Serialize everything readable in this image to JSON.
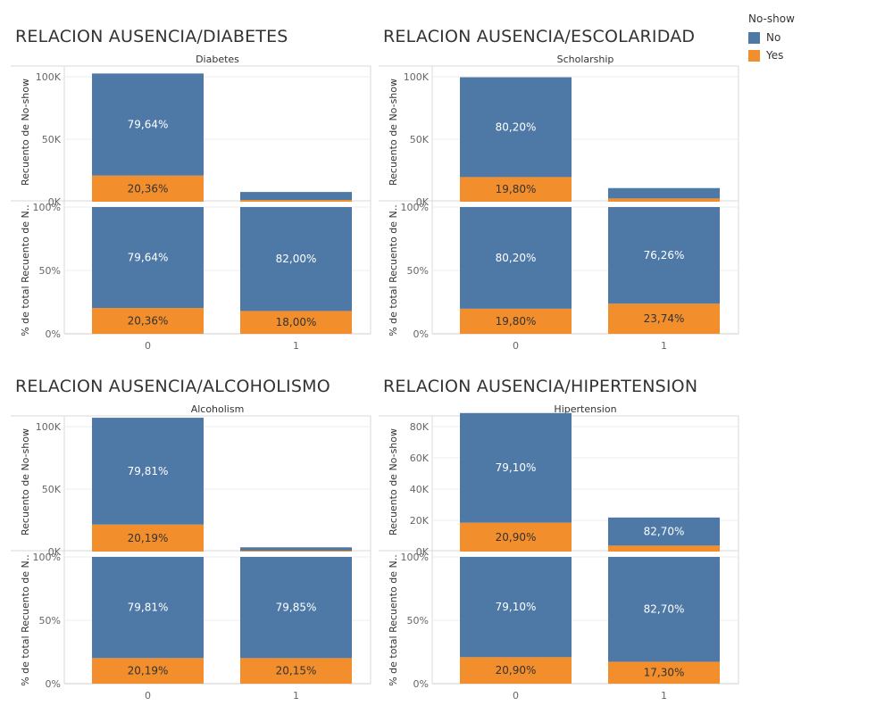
{
  "legend": {
    "title": "No-show",
    "items": [
      {
        "label": "No",
        "color": "#4e79a7"
      },
      {
        "label": "Yes",
        "color": "#f28e2b"
      }
    ]
  },
  "chart_data": [
    {
      "type": "bar",
      "title": "RELACION AUSENCIA/DIABETES",
      "facet_label": "Diabetes",
      "categories": [
        "0",
        "1"
      ],
      "count_panel": {
        "ylabel": "Recuento de No-show",
        "ylim": [
          0,
          110000
        ],
        "ticks": [
          {
            "v": 0,
            "label": "0K"
          },
          {
            "v": 50000,
            "label": "50K"
          },
          {
            "v": 100000,
            "label": "100K"
          }
        ],
        "series": [
          {
            "name": "No",
            "values": [
              81700,
              6400
            ]
          },
          {
            "name": "Yes",
            "values": [
              20900,
              1400
            ]
          }
        ],
        "labels": [
          [
            "79,64%",
            "20,36%"
          ],
          [
            "",
            ""
          ]
        ]
      },
      "pct_panel": {
        "ylabel": "% de total Recuento de N..",
        "ylim": [
          0,
          100
        ],
        "ticks": [
          {
            "v": 0,
            "label": "0%"
          },
          {
            "v": 50,
            "label": "50%"
          },
          {
            "v": 100,
            "label": "100%"
          }
        ],
        "series": [
          {
            "name": "No",
            "values": [
              79.64,
              82.0
            ]
          },
          {
            "name": "Yes",
            "values": [
              20.36,
              18.0
            ]
          }
        ],
        "labels": [
          [
            "79,64%",
            "20,36%"
          ],
          [
            "82,00%",
            "18,00%"
          ]
        ]
      }
    },
    {
      "type": "bar",
      "title": "RELACION AUSENCIA/ESCOLARIDAD",
      "facet_label": "Scholarship",
      "categories": [
        "0",
        "1"
      ],
      "count_panel": {
        "ylabel": "Recuento de No-show",
        "ylim": [
          0,
          110000
        ],
        "ticks": [
          {
            "v": 0,
            "label": "0K"
          },
          {
            "v": 50000,
            "label": "50K"
          },
          {
            "v": 100000,
            "label": "100K"
          }
        ],
        "series": [
          {
            "name": "No",
            "values": [
              79900,
              8300
            ]
          },
          {
            "name": "Yes",
            "values": [
              19700,
              2600
            ]
          }
        ],
        "labels": [
          [
            "80,20%",
            "19,80%"
          ],
          [
            "",
            ""
          ]
        ]
      },
      "pct_panel": {
        "ylabel": "% de total Recuento de N..",
        "ylim": [
          0,
          100
        ],
        "ticks": [
          {
            "v": 0,
            "label": "0%"
          },
          {
            "v": 50,
            "label": "50%"
          },
          {
            "v": 100,
            "label": "100%"
          }
        ],
        "series": [
          {
            "name": "No",
            "values": [
              80.2,
              76.26
            ]
          },
          {
            "name": "Yes",
            "values": [
              19.8,
              23.74
            ]
          }
        ],
        "labels": [
          [
            "80,20%",
            "19,80%"
          ],
          [
            "76,26%",
            "23,74%"
          ]
        ]
      }
    },
    {
      "type": "bar",
      "title": "RELACION AUSENCIA/ALCOHOLISMO",
      "facet_label": "Alcoholism",
      "categories": [
        "0",
        "1"
      ],
      "count_panel": {
        "ylabel": "Recuento de No-show",
        "ylim": [
          0,
          112000
        ],
        "ticks": [
          {
            "v": 0,
            "label": "0K"
          },
          {
            "v": 50000,
            "label": "50K"
          },
          {
            "v": 100000,
            "label": "100K"
          }
        ],
        "series": [
          {
            "name": "No",
            "values": [
              85500,
              2700
            ]
          },
          {
            "name": "Yes",
            "values": [
              21600,
              700
            ]
          }
        ],
        "labels": [
          [
            "79,81%",
            "20,19%"
          ],
          [
            "",
            ""
          ]
        ]
      },
      "pct_panel": {
        "ylabel": "% de total Recuento de N..",
        "ylim": [
          0,
          100
        ],
        "ticks": [
          {
            "v": 0,
            "label": "0%"
          },
          {
            "v": 50,
            "label": "50%"
          },
          {
            "v": 100,
            "label": "100%"
          }
        ],
        "series": [
          {
            "name": "No",
            "values": [
              79.81,
              79.85
            ]
          },
          {
            "name": "Yes",
            "values": [
              20.19,
              20.15
            ]
          }
        ],
        "labels": [
          [
            "79,81%",
            "20,19%"
          ],
          [
            "79,85%",
            "20,15%"
          ]
        ]
      }
    },
    {
      "type": "bar",
      "title": "RELACION AUSENCIA/HIPERTENSION",
      "facet_label": "Hipertension",
      "categories": [
        "0",
        "1"
      ],
      "count_panel": {
        "ylabel": "Recuento de No-show",
        "ylim": [
          0,
          95000
        ],
        "ticks": [
          {
            "v": 0,
            "label": "0K"
          },
          {
            "v": 20000,
            "label": "20K"
          },
          {
            "v": 40000,
            "label": "40K"
          },
          {
            "v": 60000,
            "label": "60K"
          },
          {
            "v": 80000,
            "label": "80K"
          }
        ],
        "series": [
          {
            "name": "No",
            "values": [
              70200,
              18000
            ]
          },
          {
            "name": "Yes",
            "values": [
              18500,
              3800
            ]
          }
        ],
        "labels": [
          [
            "79,10%",
            "20,90%"
          ],
          [
            "82,70%",
            ""
          ]
        ]
      },
      "pct_panel": {
        "ylabel": "% de total Recuento de N..",
        "ylim": [
          0,
          100
        ],
        "ticks": [
          {
            "v": 0,
            "label": "0%"
          },
          {
            "v": 50,
            "label": "50%"
          },
          {
            "v": 100,
            "label": "100%"
          }
        ],
        "series": [
          {
            "name": "No",
            "values": [
              79.1,
              82.7
            ]
          },
          {
            "name": "Yes",
            "values": [
              20.9,
              17.3
            ]
          }
        ],
        "labels": [
          [
            "79,10%",
            "20,90%"
          ],
          [
            "82,70%",
            "17,30%"
          ]
        ]
      }
    }
  ]
}
